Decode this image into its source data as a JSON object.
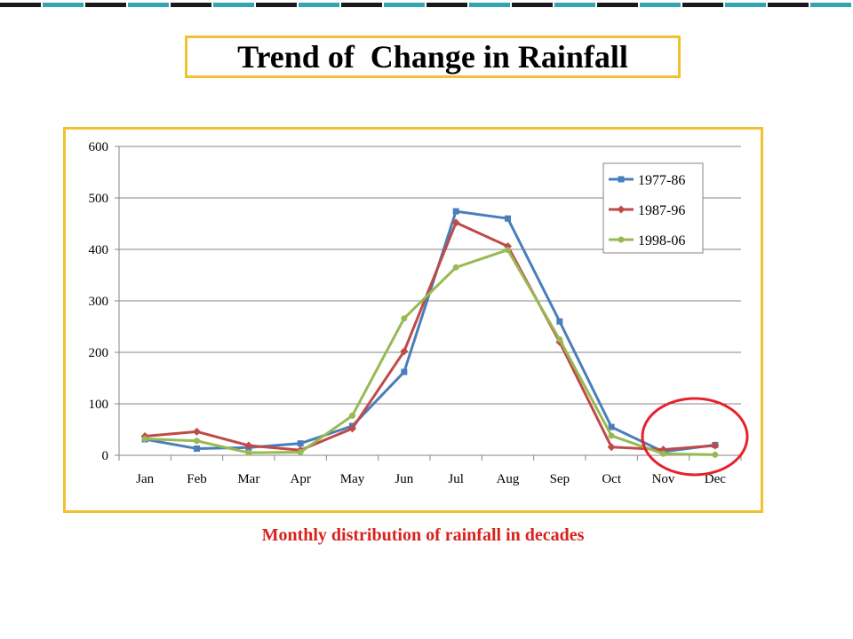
{
  "slide_title": "Trend of  Change in Rainfall",
  "caption": "Monthly distribution of rainfall in decades",
  "colors": {
    "frame": "#f2c12e",
    "caption": "#d9221c",
    "highlight_circle": "#e8202a",
    "top_bar_dark": "#1a1a1a",
    "top_bar_teal": "#33a4b4"
  },
  "chart_data": {
    "type": "line",
    "title": "",
    "xlabel": "",
    "ylabel": "",
    "categories": [
      "Jan",
      "Feb",
      "Mar",
      "Apr",
      "May",
      "Jun",
      "Jul",
      "Aug",
      "Sep",
      "Oct",
      "Nov",
      "Dec"
    ],
    "ylim": [
      0,
      600
    ],
    "yticks": [
      0,
      100,
      200,
      300,
      400,
      500,
      600
    ],
    "grid": "horizontal",
    "legend_position": "top-right",
    "series": [
      {
        "name": "1977-86",
        "color": "#4a7ebb",
        "marker": "square",
        "values": [
          31,
          13,
          15,
          23,
          57,
          162,
          474,
          460,
          260,
          55,
          7,
          20
        ]
      },
      {
        "name": "1987-96",
        "color": "#be4b48",
        "marker": "diamond",
        "values": [
          37,
          46,
          19,
          10,
          52,
          202,
          452,
          406,
          220,
          16,
          11,
          19
        ]
      },
      {
        "name": "1998-06",
        "color": "#98b954",
        "marker": "circle",
        "values": [
          32,
          28,
          5,
          6,
          77,
          266,
          365,
          399,
          225,
          38,
          3,
          1
        ]
      }
    ]
  }
}
